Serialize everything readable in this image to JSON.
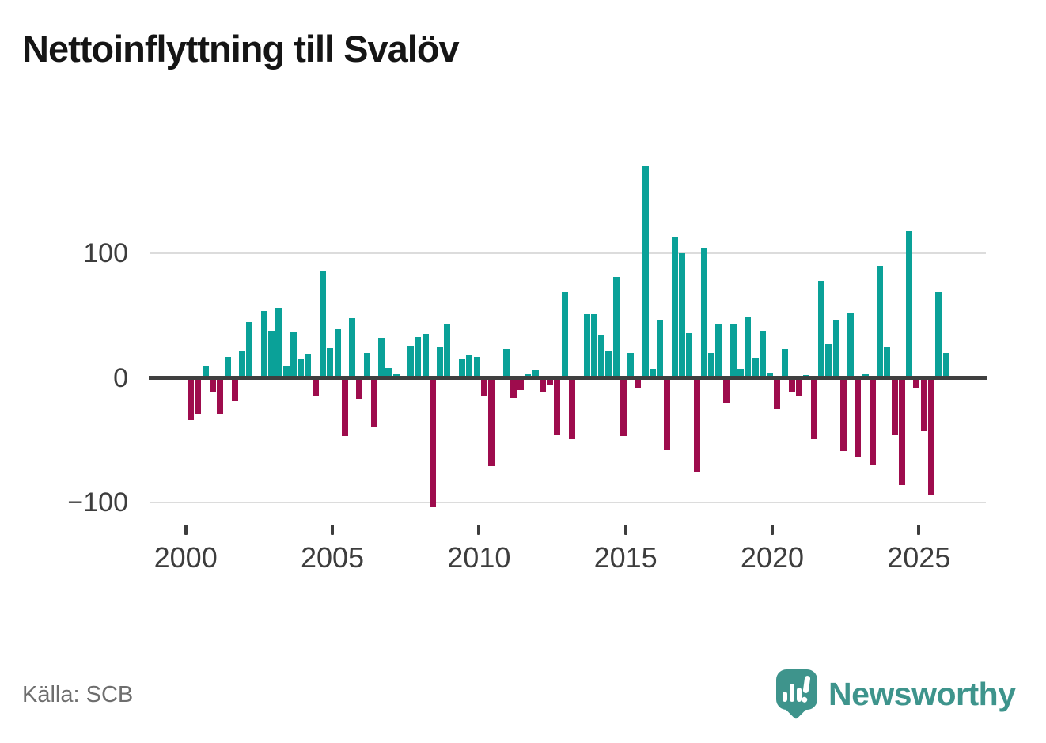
{
  "title": "Nettoinflyttning till Svalöv",
  "source": "Källa: SCB",
  "logo": {
    "brand": "Newsworthy"
  },
  "colors": {
    "positive_bar": "#0aa198",
    "negative_bar": "#9e0c4d",
    "zero_axis": "#3f3f3f",
    "gridline": "#dcdcdc",
    "axis_text": "#3d3d3d",
    "source_text": "#6e6e6e",
    "logo_teal": "#3e948c"
  },
  "y_axis": {
    "ticks": [
      100,
      0,
      -100
    ],
    "labels": [
      "100",
      "0",
      "−100"
    ]
  },
  "x_axis": {
    "labels": [
      "2000",
      "2005",
      "2010",
      "2015",
      "2020",
      "2025"
    ]
  },
  "chart_data": {
    "type": "bar",
    "title": "Nettoinflyttning till Svalöv",
    "xlabel": "",
    "ylabel": "",
    "ylim": [
      -120,
      180
    ],
    "grid": "horizontal",
    "positive_color": "#0aa198",
    "negative_color": "#9e0c4d",
    "categories": [
      "2000Q1",
      "2000Q2",
      "2000Q3",
      "2000Q4",
      "2001Q1",
      "2001Q2",
      "2001Q3",
      "2001Q4",
      "2002Q1",
      "2002Q2",
      "2002Q3",
      "2002Q4",
      "2003Q1",
      "2003Q2",
      "2003Q3",
      "2003Q4",
      "2004Q1",
      "2004Q2",
      "2004Q3",
      "2004Q4",
      "2005Q1",
      "2005Q2",
      "2005Q3",
      "2005Q4",
      "2006Q1",
      "2006Q2",
      "2006Q3",
      "2006Q4",
      "2007Q1",
      "2007Q2",
      "2007Q3",
      "2007Q4",
      "2008Q1",
      "2008Q2",
      "2008Q3",
      "2008Q4",
      "2009Q1",
      "2009Q2",
      "2009Q3",
      "2009Q4",
      "2010Q1",
      "2010Q2",
      "2010Q3",
      "2010Q4",
      "2011Q1",
      "2011Q2",
      "2011Q3",
      "2011Q4",
      "2012Q1",
      "2012Q2",
      "2012Q3",
      "2012Q4",
      "2013Q1",
      "2013Q2",
      "2013Q3",
      "2013Q4",
      "2014Q1",
      "2014Q2",
      "2014Q3",
      "2014Q4",
      "2015Q1",
      "2015Q2",
      "2015Q3",
      "2015Q4",
      "2016Q1",
      "2016Q2",
      "2016Q3",
      "2016Q4",
      "2017Q1",
      "2017Q2",
      "2017Q3",
      "2017Q4",
      "2018Q1",
      "2018Q2",
      "2018Q3",
      "2018Q4",
      "2019Q1",
      "2019Q2",
      "2019Q3",
      "2019Q4",
      "2020Q1",
      "2020Q2",
      "2020Q3",
      "2020Q4",
      "2021Q1",
      "2021Q2",
      "2021Q3",
      "2021Q4",
      "2022Q1",
      "2022Q2",
      "2022Q3",
      "2022Q4",
      "2023Q1",
      "2023Q2",
      "2023Q3",
      "2023Q4",
      "2024Q1",
      "2024Q2",
      "2024Q3",
      "2024Q4",
      "2025Q1",
      "2025Q2",
      "2025Q3",
      "2025Q4"
    ],
    "values": [
      -34,
      -29,
      10,
      -12,
      -29,
      17,
      -19,
      22,
      45,
      1,
      54,
      38,
      56,
      9,
      37,
      15,
      19,
      -14,
      86,
      24,
      39,
      -47,
      48,
      -17,
      20,
      -40,
      32,
      8,
      3,
      1,
      26,
      33,
      35,
      -104,
      25,
      43,
      1,
      15,
      18,
      17,
      -15,
      -71,
      -1,
      23,
      -16,
      -10,
      3,
      6,
      -11,
      -6,
      -46,
      69,
      -49,
      -1,
      51,
      51,
      34,
      22,
      81,
      -47,
      20,
      -8,
      170,
      7,
      47,
      -58,
      113,
      100,
      36,
      -75,
      104,
      20,
      43,
      -20,
      43,
      7,
      49,
      16,
      38,
      4,
      -25,
      23,
      -11,
      -14,
      2,
      -49,
      78,
      27,
      46,
      -59,
      52,
      -64,
      3,
      -70,
      90,
      25,
      -46,
      -86,
      118,
      -8,
      -43,
      -94,
      69,
      20
    ]
  }
}
